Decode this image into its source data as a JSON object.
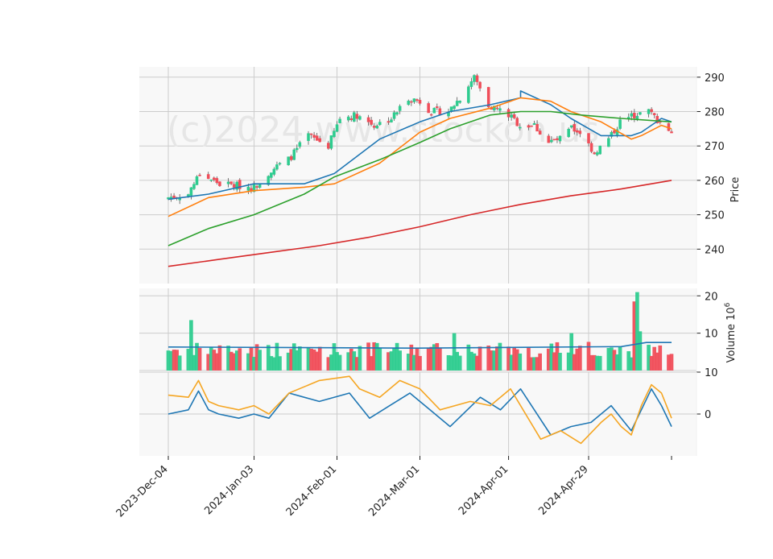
{
  "chart_data": [
    {
      "type": "candlestick",
      "panel": "price",
      "ylabel": "Price",
      "ylim": [
        230,
        293
      ],
      "yticks": [
        240,
        250,
        260,
        270,
        280,
        290
      ],
      "xticks": [
        "2023-Dec-04",
        "2024-Jan-03",
        "2024-Feb-01",
        "2024-Mar-01",
        "2024-Apr-01",
        "2024-Apr-29"
      ],
      "x_date_range": [
        "2023-12-04",
        "2024-05-28"
      ],
      "grid": true,
      "watermark": "(c)2024 www.stockon.us",
      "up_color": "#2ecc8f",
      "down_color": "#f04e5a",
      "close_anchors": [
        [
          "2023-12-04",
          255
        ],
        [
          "2023-12-11",
          256
        ],
        [
          "2023-12-15",
          262
        ],
        [
          "2023-12-22",
          259
        ],
        [
          "2024-01-03",
          258
        ],
        [
          "2024-01-09",
          263
        ],
        [
          "2024-01-15",
          266
        ],
        [
          "2024-01-22",
          273
        ],
        [
          "2024-01-29",
          270
        ],
        [
          "2024-02-02",
          278
        ],
        [
          "2024-02-08",
          279
        ],
        [
          "2024-02-14",
          276
        ],
        [
          "2024-02-20",
          278
        ],
        [
          "2024-02-26",
          284
        ],
        [
          "2024-03-01",
          283
        ],
        [
          "2024-03-05",
          280
        ],
        [
          "2024-03-11",
          280
        ],
        [
          "2024-03-15",
          284
        ],
        [
          "2024-03-20",
          290
        ],
        [
          "2024-03-25",
          282
        ],
        [
          "2024-04-01",
          279
        ],
        [
          "2024-04-05",
          276
        ],
        [
          "2024-04-10",
          276
        ],
        [
          "2024-04-15",
          271
        ],
        [
          "2024-04-19",
          272
        ],
        [
          "2024-04-23",
          275
        ],
        [
          "2024-04-26",
          274
        ],
        [
          "2024-05-01",
          268
        ],
        [
          "2024-05-06",
          272
        ],
        [
          "2024-05-10",
          277
        ],
        [
          "2024-05-15",
          279
        ],
        [
          "2024-05-20",
          280
        ],
        [
          "2024-05-24",
          277
        ],
        [
          "2024-05-28",
          274
        ]
      ],
      "ma_series": [
        {
          "color": "#1f77b4",
          "values": [
            [
              0,
              254.5
            ],
            [
              0.08,
              256
            ],
            [
              0.17,
              259
            ],
            [
              0.27,
              259
            ],
            [
              0.33,
              262
            ],
            [
              0.42,
              272
            ],
            [
              0.5,
              277
            ],
            [
              0.56,
              280
            ],
            [
              0.64,
              282
            ],
            [
              0.7,
              284
            ],
            [
              0.7,
              286
            ],
            [
              0.76,
              282
            ],
            [
              0.8,
              278
            ],
            [
              0.86,
              273
            ],
            [
              0.92,
              273
            ],
            [
              0.94,
              274
            ],
            [
              0.98,
              278
            ],
            [
              1,
              277
            ]
          ]
        },
        {
          "color": "#ff7f0e",
          "values": [
            [
              0,
              249.5
            ],
            [
              0.08,
              255
            ],
            [
              0.17,
              257
            ],
            [
              0.27,
              258
            ],
            [
              0.33,
              259
            ],
            [
              0.42,
              265
            ],
            [
              0.5,
              274
            ],
            [
              0.56,
              278
            ],
            [
              0.64,
              281
            ],
            [
              0.7,
              284
            ],
            [
              0.76,
              283
            ],
            [
              0.8,
              280
            ],
            [
              0.86,
              277
            ],
            [
              0.92,
              272
            ],
            [
              0.94,
              273
            ],
            [
              0.98,
              276
            ],
            [
              1,
              275
            ]
          ]
        },
        {
          "color": "#2ca02c",
          "values": [
            [
              0,
              241
            ],
            [
              0.08,
              246
            ],
            [
              0.17,
              250
            ],
            [
              0.27,
              256
            ],
            [
              0.33,
              261
            ],
            [
              0.42,
              266
            ],
            [
              0.5,
              271
            ],
            [
              0.56,
              275
            ],
            [
              0.64,
              279
            ],
            [
              0.7,
              280
            ],
            [
              0.76,
              280
            ],
            [
              0.82,
              279
            ],
            [
              0.9,
              278
            ],
            [
              1,
              277
            ]
          ]
        },
        {
          "color": "#d62728",
          "values": [
            [
              0,
              235
            ],
            [
              0.1,
              237
            ],
            [
              0.2,
              239
            ],
            [
              0.3,
              241
            ],
            [
              0.4,
              243.5
            ],
            [
              0.5,
              246.5
            ],
            [
              0.6,
              250
            ],
            [
              0.7,
              253
            ],
            [
              0.8,
              255.5
            ],
            [
              0.9,
              257.5
            ],
            [
              1,
              260
            ]
          ]
        }
      ]
    },
    {
      "type": "bar",
      "panel": "volume",
      "ylabel": "Volume  10^6",
      "ylim": [
        0,
        22
      ],
      "yticks": [
        10,
        20
      ],
      "volume_ma_color": "#1f77b4",
      "volume_ma": [
        [
          0,
          6.3
        ],
        [
          0.5,
          6.0
        ],
        [
          0.9,
          6.4
        ],
        [
          0.95,
          7.5
        ],
        [
          1,
          7.5
        ]
      ],
      "spikes": [
        [
          "2023-12-12",
          13.5
        ],
        [
          "2024-05-15",
          18.5
        ],
        [
          "2024-05-16",
          21
        ],
        [
          "2024-05-17",
          10.5
        ],
        [
          "2024-03-13",
          10
        ],
        [
          "2024-04-23",
          10
        ]
      ]
    },
    {
      "type": "line",
      "panel": "indicator",
      "ylim": [
        -10,
        10
      ],
      "yticks": [
        0,
        10
      ],
      "series": [
        {
          "color": "#1f77b4",
          "values": [
            [
              0,
              0
            ],
            [
              0.04,
              1
            ],
            [
              0.06,
              5.5
            ],
            [
              0.08,
              1
            ],
            [
              0.1,
              0
            ],
            [
              0.14,
              -1
            ],
            [
              0.17,
              0
            ],
            [
              0.2,
              -1
            ],
            [
              0.24,
              5
            ],
            [
              0.3,
              3
            ],
            [
              0.36,
              5
            ],
            [
              0.4,
              -1
            ],
            [
              0.44,
              2
            ],
            [
              0.48,
              5
            ],
            [
              0.52,
              1
            ],
            [
              0.56,
              -3
            ],
            [
              0.62,
              4
            ],
            [
              0.66,
              1
            ],
            [
              0.7,
              6
            ],
            [
              0.76,
              -5
            ],
            [
              0.8,
              -3
            ],
            [
              0.84,
              -2
            ],
            [
              0.88,
              2
            ],
            [
              0.9,
              -1
            ],
            [
              0.92,
              -4
            ],
            [
              0.94,
              1
            ],
            [
              0.96,
              6
            ],
            [
              0.98,
              2
            ],
            [
              1,
              -3
            ]
          ]
        },
        {
          "color": "#f5a623",
          "values": [
            [
              0,
              4.5
            ],
            [
              0.04,
              4
            ],
            [
              0.06,
              8
            ],
            [
              0.08,
              3
            ],
            [
              0.1,
              2
            ],
            [
              0.14,
              1
            ],
            [
              0.17,
              2
            ],
            [
              0.2,
              0
            ],
            [
              0.24,
              5
            ],
            [
              0.3,
              8
            ],
            [
              0.36,
              9
            ],
            [
              0.38,
              6
            ],
            [
              0.42,
              4
            ],
            [
              0.46,
              8
            ],
            [
              0.5,
              6
            ],
            [
              0.54,
              1
            ],
            [
              0.6,
              3
            ],
            [
              0.64,
              2
            ],
            [
              0.68,
              6
            ],
            [
              0.74,
              -6
            ],
            [
              0.78,
              -4
            ],
            [
              0.82,
              -7
            ],
            [
              0.86,
              -2
            ],
            [
              0.88,
              0
            ],
            [
              0.9,
              -3
            ],
            [
              0.92,
              -5
            ],
            [
              0.94,
              2
            ],
            [
              0.96,
              7
            ],
            [
              0.98,
              5
            ],
            [
              1,
              -1
            ]
          ]
        }
      ]
    }
  ]
}
